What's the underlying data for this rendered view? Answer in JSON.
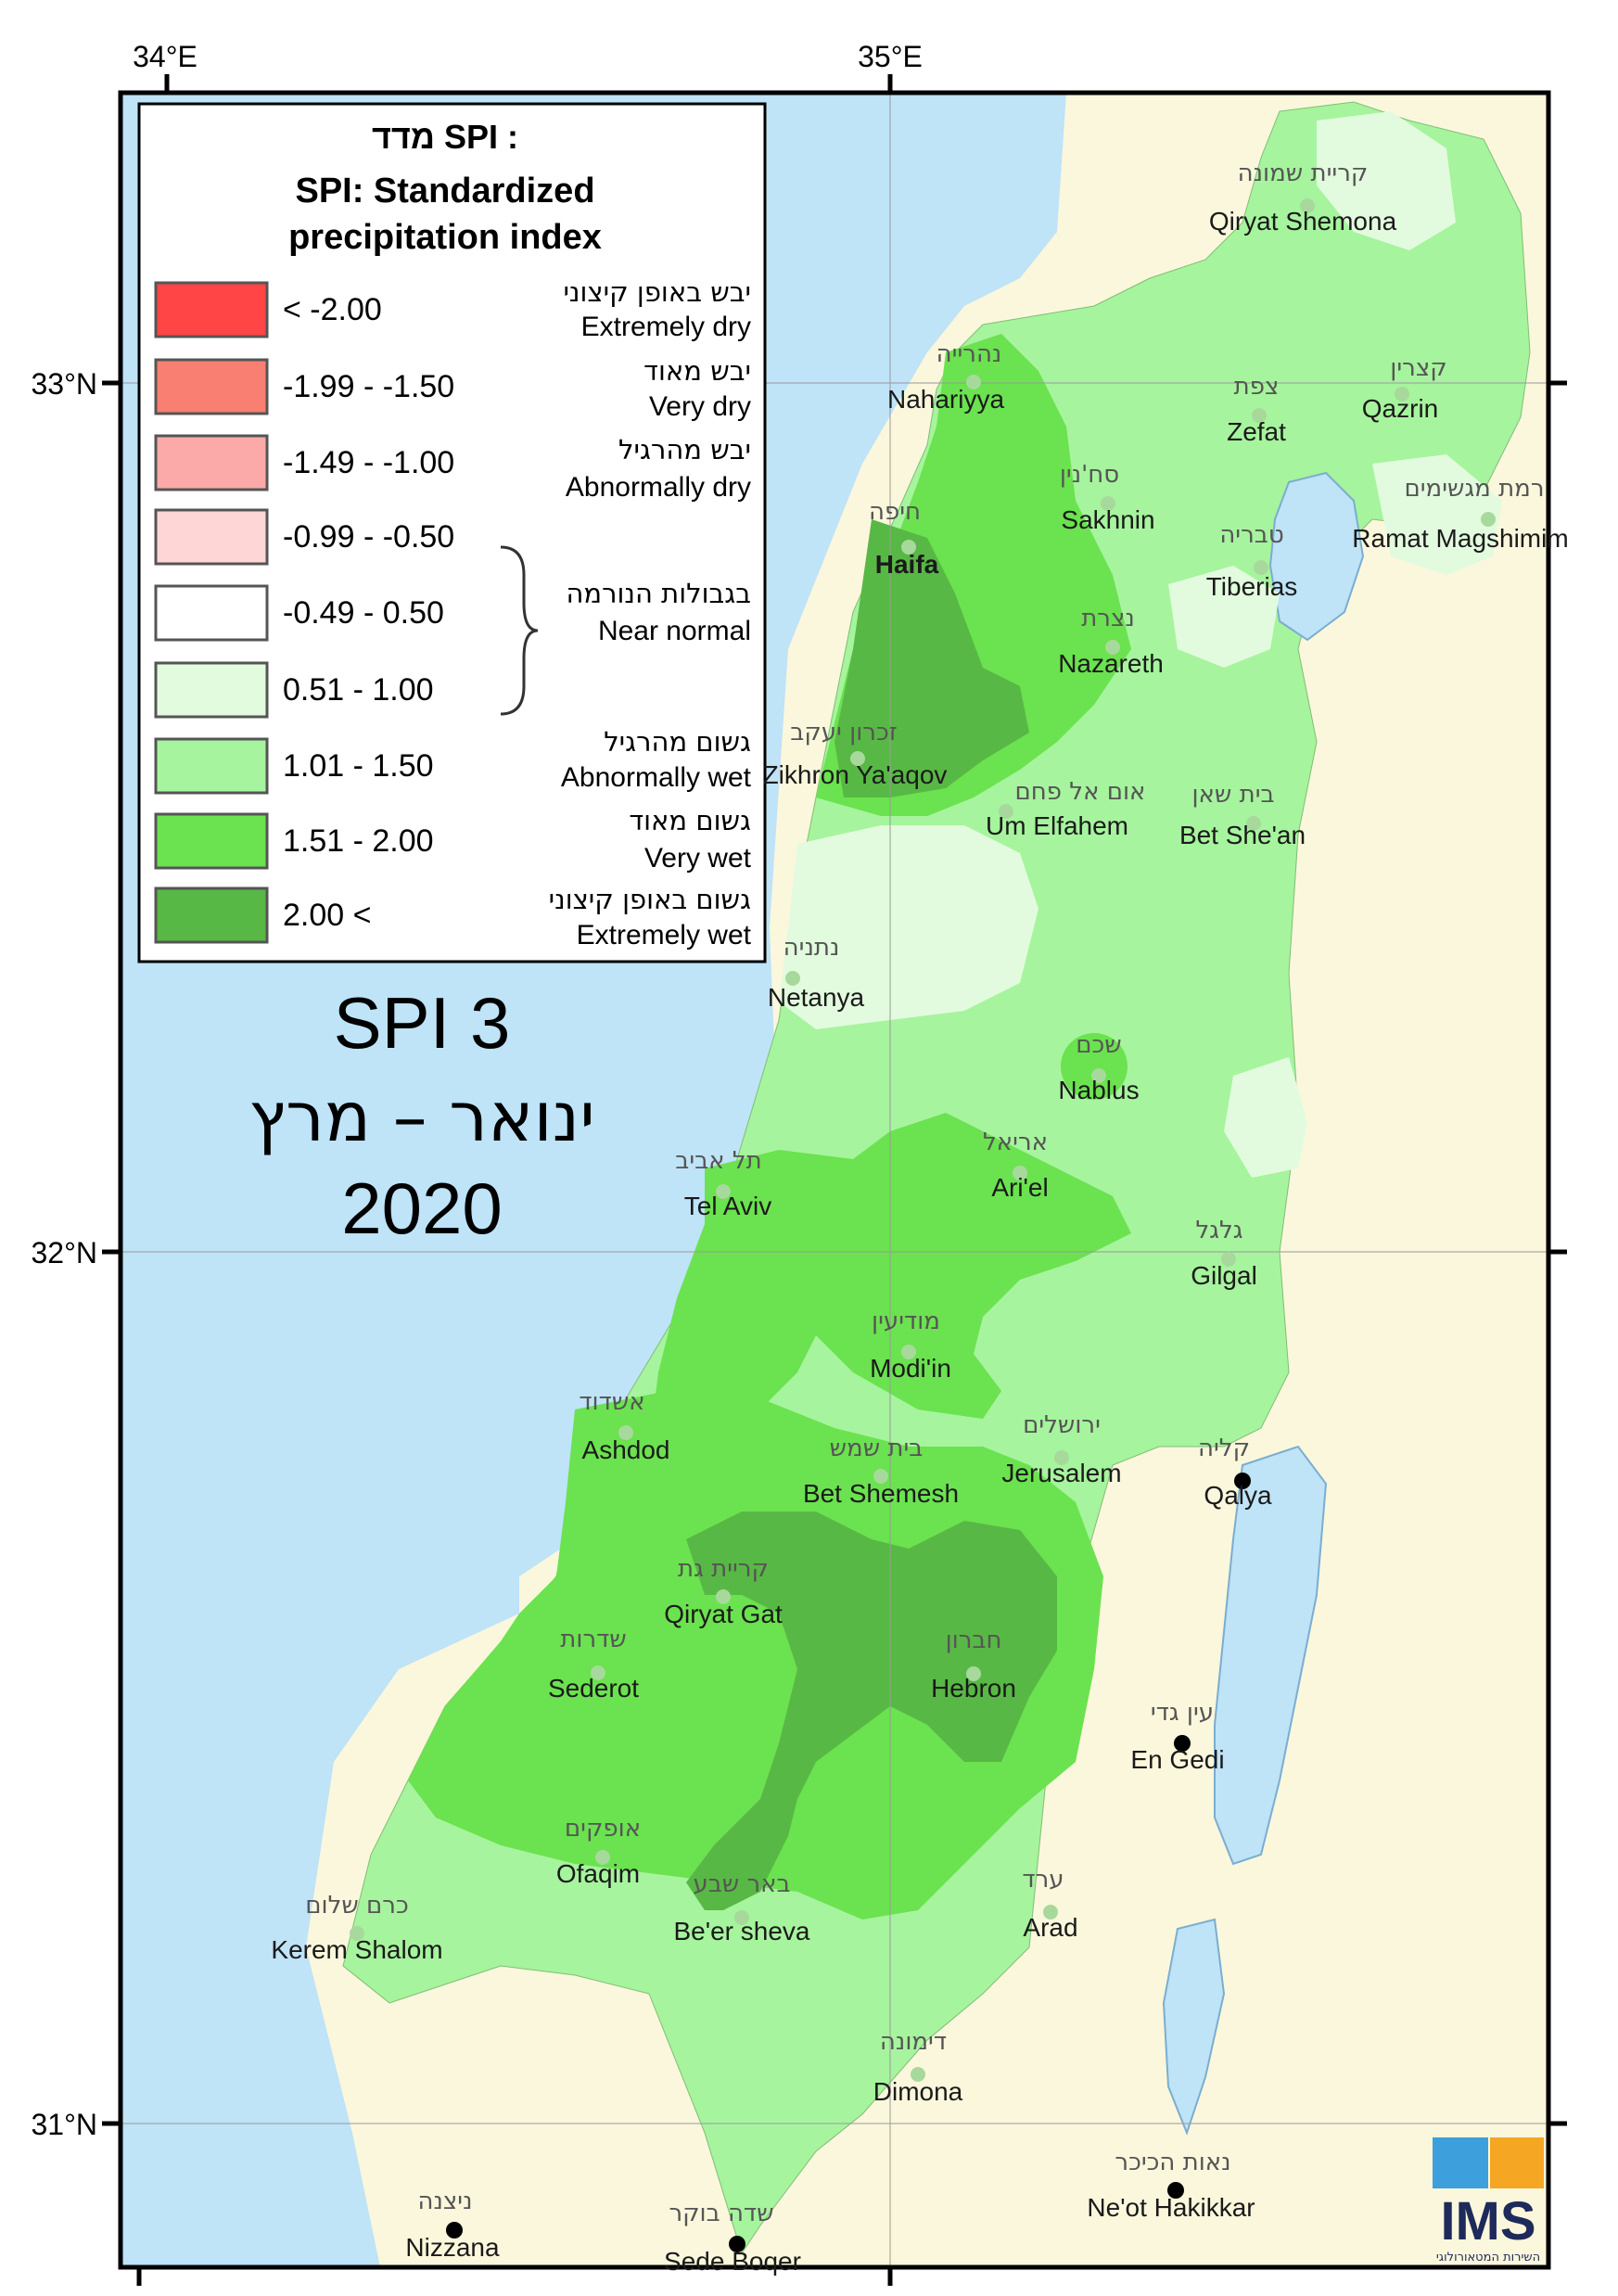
{
  "map": {
    "title": "SPI 3",
    "period_he": "ינואר – מרץ",
    "year": "2020"
  },
  "axes": {
    "lon_labels": [
      "34°E",
      "35°E"
    ],
    "lat_labels": [
      "33°N",
      "32°N",
      "31°N"
    ]
  },
  "legend": {
    "title_he": "מדד SPI :",
    "title_en_1": "SPI: Standardized",
    "title_en_2": "precipitation index",
    "classes": [
      {
        "range": "< -2.00",
        "color": "#ff4545"
      },
      {
        "range": "-1.99 - -1.50",
        "color": "#f97f72"
      },
      {
        "range": "-1.49 - -1.00",
        "color": "#fbaaa9"
      },
      {
        "range": "-0.99 - -0.50",
        "color": "#fed6d6"
      },
      {
        "range": "-0.49 - 0.50",
        "color": "#ffffff"
      },
      {
        "range": "0.51 - 1.00",
        "color": "#e2fbde"
      },
      {
        "range": "1.01 - 1.50",
        "color": "#a6f49d"
      },
      {
        "range": "1.51 - 2.00",
        "color": "#6be24f"
      },
      {
        "range": "2.00 <",
        "color": "#58b845"
      }
    ],
    "categories": [
      {
        "he": "יבש באופן קיצוני",
        "en": "Extremely dry"
      },
      {
        "he": "יבש מאוד",
        "en": "Very dry"
      },
      {
        "he": "יבש מהרגיל",
        "en": "Abnormally dry"
      },
      {
        "he": "בגבולות הנורמה",
        "en": "Near normal"
      },
      {
        "he": "גשום מהרגיל",
        "en": "Abnormally wet"
      },
      {
        "he": "גשום מאוד",
        "en": "Very wet"
      },
      {
        "he": "גשום באופן קיצוני",
        "en": "Extremely wet"
      }
    ]
  },
  "places": [
    {
      "he": "קריית שמונה",
      "en": "Qiryat Shemona"
    },
    {
      "he": "נהרייה",
      "en": "Nahariyya"
    },
    {
      "he": "צפת",
      "en": "Zefat"
    },
    {
      "he": "קצרין",
      "en": "Qazrin"
    },
    {
      "he": "סח'נין",
      "en": "Sakhnin"
    },
    {
      "he": "רמת מגשימים",
      "en": "Ramat Magshimim"
    },
    {
      "he": "חיפה",
      "en": "Haifa"
    },
    {
      "he": "טבריה",
      "en": "Tiberias"
    },
    {
      "he": "נצרת",
      "en": "Nazareth"
    },
    {
      "he": "זכרון יעקב",
      "en": "Zikhron Ya'aqov"
    },
    {
      "he": "אום אל פחם",
      "en": "Um Elfahem"
    },
    {
      "he": "בית שאן",
      "en": "Bet She'an"
    },
    {
      "he": "נתניה",
      "en": "Netanya"
    },
    {
      "he": "שכם",
      "en": "Nablus"
    },
    {
      "he": "תל אביב",
      "en": "Tel Aviv"
    },
    {
      "he": "אריאל",
      "en": "Ari'el"
    },
    {
      "he": "גלגל",
      "en": "Gilgal"
    },
    {
      "he": "מודיעין",
      "en": "Modi'in"
    },
    {
      "he": "אשדוד",
      "en": "Ashdod"
    },
    {
      "he": "ירושלים",
      "en": "Jerusalem"
    },
    {
      "he": "קליה",
      "en": "Qalya"
    },
    {
      "he": "בית שמש",
      "en": "Bet Shemesh"
    },
    {
      "he": "קריית גת",
      "en": "Qiryat Gat"
    },
    {
      "he": "שדרות",
      "en": "Sederot"
    },
    {
      "he": "חברון",
      "en": "Hebron"
    },
    {
      "he": "עין גדי",
      "en": "En Gedi"
    },
    {
      "he": "אופקים",
      "en": "Ofaqim"
    },
    {
      "he": "כרם שלום",
      "en": "Kerem Shalom"
    },
    {
      "he": "באר שבע",
      "en": "Be'er sheva"
    },
    {
      "he": "ערד",
      "en": "Arad"
    },
    {
      "he": "דימונה",
      "en": "Dimona"
    },
    {
      "he": "נאות הכיכר",
      "en": "Ne'ot Hakikkar"
    },
    {
      "he": "ניצנה",
      "en": "Nizzana"
    },
    {
      "he": "שדה בוקר",
      "en": "Sede Boqer"
    }
  ],
  "logo": {
    "text": "IMS",
    "sub": "השירות המטאורולוגי"
  }
}
